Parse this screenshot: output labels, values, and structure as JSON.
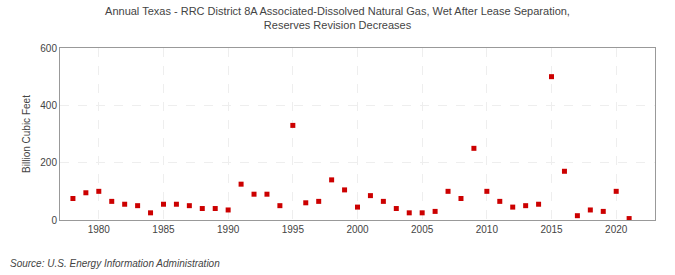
{
  "chart_data": {
    "type": "scatter",
    "title": "Annual Texas - RRC District 8A Associated-Dissolved Natural Gas, Wet After Lease Separation,",
    "subtitle": "Reserves Revision Decreases",
    "ylabel": "Billion Cubic Feet",
    "annotations": [
      "Source: U.S. Energy Information Administration"
    ],
    "color": "#cc0000",
    "marker": "square",
    "x": [
      1978,
      1979,
      1980,
      1981,
      1982,
      1983,
      1984,
      1985,
      1986,
      1987,
      1988,
      1989,
      1990,
      1991,
      1992,
      1993,
      1994,
      1995,
      1996,
      1997,
      1998,
      1999,
      2000,
      2001,
      2002,
      2003,
      2004,
      2005,
      2006,
      2007,
      2008,
      2009,
      2010,
      2011,
      2012,
      2013,
      2014,
      2015,
      2016,
      2017,
      2018,
      2019,
      2020,
      2021
    ],
    "values": [
      75,
      95,
      100,
      65,
      55,
      50,
      25,
      55,
      55,
      50,
      40,
      40,
      35,
      125,
      90,
      90,
      50,
      330,
      60,
      65,
      140,
      105,
      45,
      85,
      65,
      40,
      25,
      25,
      30,
      100,
      75,
      250,
      100,
      65,
      45,
      50,
      55,
      500,
      170,
      15,
      35,
      30,
      100,
      5
    ],
    "xlim": [
      1977,
      2023
    ],
    "xticks": [
      1980,
      1985,
      1990,
      1995,
      2000,
      2005,
      2010,
      2015,
      2020
    ],
    "ylim": [
      0,
      600
    ],
    "yticks": [
      0,
      200,
      400,
      600
    ],
    "grid": true
  }
}
